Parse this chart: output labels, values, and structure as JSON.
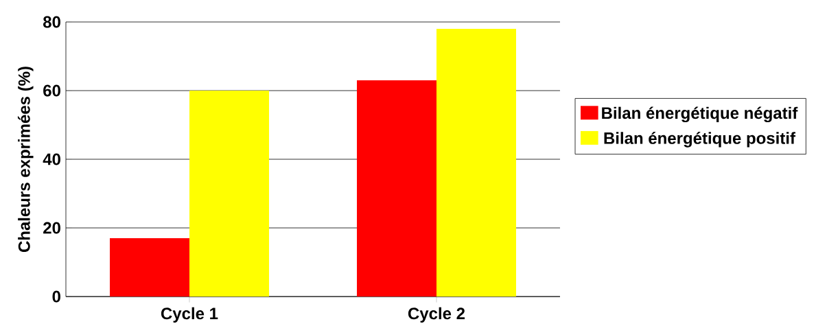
{
  "chart_data": {
    "type": "bar",
    "ylabel": "Chaleurs exprimées (%)",
    "categories": [
      "Cycle 1",
      "Cycle 2"
    ],
    "series": [
      {
        "name": "Bilan énergétique négatif",
        "color": "#ff0000",
        "values": [
          17,
          63
        ]
      },
      {
        "name": "Bilan énergétique positif",
        "color": "#ffff00",
        "values": [
          60,
          78
        ]
      }
    ],
    "ylim": [
      0,
      80
    ],
    "yticks": [
      0,
      20,
      40,
      60,
      80
    ],
    "grid": "y",
    "legend": "right"
  }
}
